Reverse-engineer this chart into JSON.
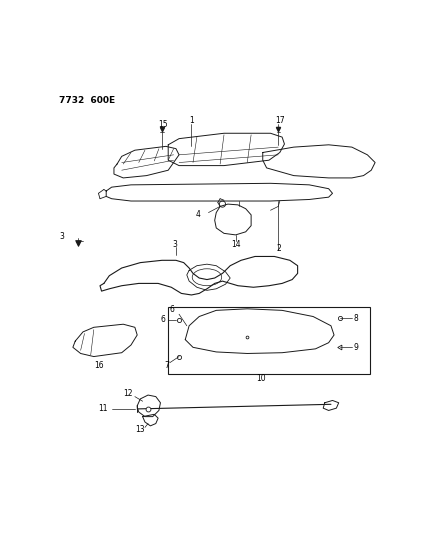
{
  "title": "7732  600E",
  "background_color": "#ffffff",
  "line_color": "#1a1a1a",
  "fig_width": 4.28,
  "fig_height": 5.33,
  "dpi": 100
}
